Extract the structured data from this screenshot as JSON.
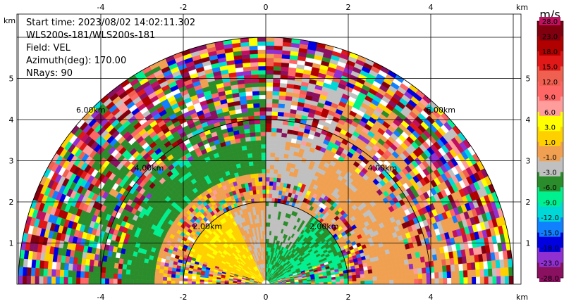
{
  "info": {
    "start_time": "Start time: 2023/08/02 14:02:11.302",
    "instrument": "WLS200s-181/WLS200s-181",
    "field": "Field: VEL",
    "azimuth": "Azimuth(deg): 170.00",
    "nrays": "NRays: 90"
  },
  "chart_data": {
    "type": "heatmap",
    "subtype": "radar-sector",
    "x_unit": "km",
    "y_unit": "km",
    "xlim": [
      -6,
      6
    ],
    "ylim": [
      0,
      6
    ],
    "x_ticks": [
      -4,
      -2,
      0,
      2,
      4
    ],
    "y_ticks": [
      1,
      2,
      3,
      4,
      5
    ],
    "grid": true,
    "max_range_km": 6,
    "range_rings": [
      {
        "r": 2,
        "label": "2.00km"
      },
      {
        "r": 4,
        "label": "4.00km"
      },
      {
        "r": 6,
        "label": "6.00km"
      }
    ],
    "colorbar": {
      "title": "m/s",
      "placement": "right",
      "levels": [
        "28.0",
        "23.0",
        "18.0",
        "15.0",
        "12.0",
        "9.0",
        "6.0",
        "3.0",
        "1.0",
        "-1.0",
        "-3.0",
        "-6.0",
        "-9.0",
        "-12.0",
        "-15.0",
        "-18.0",
        "-23.0",
        "-28.0"
      ],
      "colors": [
        "#c01060",
        "#800010",
        "#b00000",
        "#e01818",
        "#f06050",
        "#ff6666",
        "#ff9d9d",
        "#ffff00",
        "#ffd000",
        "#f0a050",
        "#c0c0c0",
        "#2a8c2a",
        "#00f090",
        "#00d8d8",
        "#1080ff",
        "#0000e0",
        "#9030d0",
        "#8a1060"
      ]
    }
  }
}
